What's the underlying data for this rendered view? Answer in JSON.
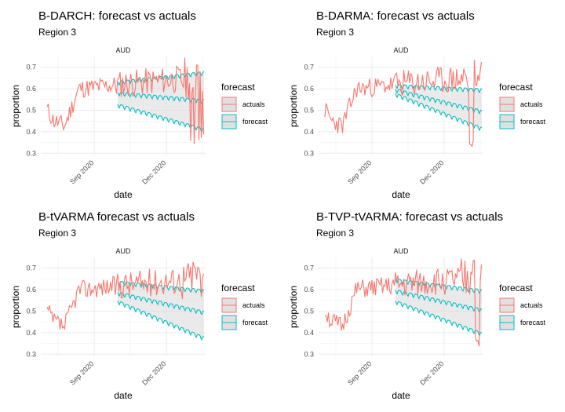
{
  "chart_data": [
    {
      "type": "line",
      "title": "B-DARCH: forecast vs actuals",
      "subtitle": "Region 3",
      "facet_label": "AUD",
      "xlabel": "date",
      "ylabel": "proportion",
      "x_ticks": [
        "Sep 2020",
        "Dec 2020"
      ],
      "y_ticks": [
        0.3,
        0.4,
        0.5,
        0.6,
        0.7
      ],
      "ylim": [
        0.29,
        0.75
      ],
      "legend_title": "forecast",
      "legend_entries": [
        "actuals",
        "forecast"
      ],
      "legend_position": "right",
      "x_domain": [
        0,
        210
      ],
      "x_tick_positions": [
        68,
        160
      ],
      "forecast_start_day": 98,
      "forecast_curves": {
        "mean": [
          0.585,
          0.55
        ],
        "upper": [
          0.635,
          0.68
        ],
        "lower": [
          0.53,
          0.415
        ]
      },
      "actuals_seed": 11
    },
    {
      "type": "line",
      "title": "B-DARMA: forecast vs actuals",
      "subtitle": "Region 3",
      "facet_label": "AUD",
      "xlabel": "date",
      "ylabel": "proportion",
      "x_ticks": [
        "Sep 2020",
        "Dec 2020"
      ],
      "y_ticks": [
        0.3,
        0.4,
        0.5,
        0.6,
        0.7
      ],
      "ylim": [
        0.29,
        0.75
      ],
      "legend_title": "forecast",
      "legend_entries": [
        "actuals",
        "forecast"
      ],
      "legend_position": "right",
      "x_domain": [
        0,
        210
      ],
      "x_tick_positions": [
        68,
        160
      ],
      "forecast_start_day": 98,
      "forecast_curves": {
        "mean": [
          0.6,
          0.5
        ],
        "upper": [
          0.62,
          0.6
        ],
        "lower": [
          0.58,
          0.42
        ]
      },
      "actuals_seed": 23
    },
    {
      "type": "line",
      "title": "B-tVARMA forecast vs actuals",
      "subtitle": "Region 3",
      "facet_label": "AUD",
      "xlabel": "date",
      "ylabel": "proportion",
      "x_ticks": [
        "Sep 2020",
        "Dec 2020"
      ],
      "y_ticks": [
        0.3,
        0.4,
        0.5,
        0.6,
        0.7
      ],
      "ylim": [
        0.29,
        0.75
      ],
      "legend_title": "forecast",
      "legend_entries": [
        "actuals",
        "forecast"
      ],
      "legend_position": "right",
      "x_domain": [
        0,
        210
      ],
      "x_tick_positions": [
        68,
        160
      ],
      "forecast_start_day": 98,
      "forecast_curves": {
        "mean": [
          0.59,
          0.5
        ],
        "upper": [
          0.64,
          0.6
        ],
        "lower": [
          0.55,
          0.38
        ]
      },
      "actuals_seed": 37
    },
    {
      "type": "line",
      "title": "B-TVP-tVARMA: forecast vs actuals",
      "subtitle": "Region 3",
      "facet_label": "AUD",
      "xlabel": "date",
      "ylabel": "proportion",
      "x_ticks": [
        "Sep 2020",
        "Dec 2020"
      ],
      "y_ticks": [
        0.3,
        0.4,
        0.5,
        0.6,
        0.7
      ],
      "ylim": [
        0.29,
        0.75
      ],
      "legend_title": "forecast",
      "legend_entries": [
        "actuals",
        "forecast"
      ],
      "legend_position": "right",
      "x_domain": [
        0,
        210
      ],
      "x_tick_positions": [
        68,
        160
      ],
      "forecast_start_day": 98,
      "forecast_curves": {
        "mean": [
          0.6,
          0.51
        ],
        "upper": [
          0.65,
          0.6
        ],
        "lower": [
          0.55,
          0.4
        ]
      },
      "actuals_seed": 51
    }
  ],
  "colors": {
    "actuals": "#F8766D",
    "forecast": "#00BFC4",
    "band": "#d9d9d9",
    "grid": "#ebebeb"
  }
}
